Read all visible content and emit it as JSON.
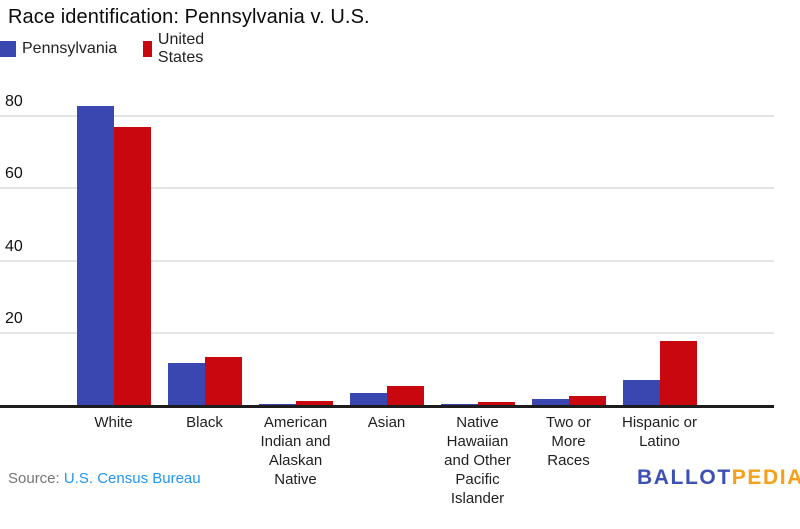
{
  "title": "Race identification: Pennsylvania v. U.S.",
  "legend": {
    "pennsylvania": "Pennsylvania",
    "united_states": "United States"
  },
  "source": {
    "prefix": "Source:",
    "link_text": "U.S. Census Bureau"
  },
  "branding": {
    "part1": "BALLOT",
    "part2": "PEDIA",
    "part1_color": "#3d50b4",
    "part2_color": "#f5a01b"
  },
  "colors": {
    "pennsylvania_blue": "#3a47b0",
    "united_states_red": "#c9070f",
    "gridline": "#e4e4e4",
    "axis": "#1d1d1d",
    "source_link_blue": "#2196f3"
  },
  "chart_data": {
    "type": "bar",
    "title": "Race identification: Pennsylvania v. U.S.",
    "xlabel": "",
    "ylabel": "",
    "categories": [
      "White",
      "Black",
      "American Indian and Alaskan Native",
      "Asian",
      "Native Hawaiian and Other Pacific Islander",
      "Two or More Races",
      "Hispanic or Latino"
    ],
    "category_display": [
      "White",
      "Black",
      "American\nIndian and\nAlaskan\nNative",
      "Asian",
      "Native\nHawaiian\nand Other\nPacific\nIslander",
      "Two or\nMore\nRaces",
      "Hispanic or\nLatino"
    ],
    "series": [
      {
        "name": "Pennsylvania",
        "color": "#3a47b0",
        "values": [
          82.8,
          11.6,
          0.4,
          3.2,
          0.1,
          1.7,
          6.9
        ]
      },
      {
        "name": "United States",
        "color": "#c9070f",
        "values": [
          77.1,
          13.4,
          1.2,
          5.4,
          0.7,
          2.5,
          17.7
        ]
      }
    ],
    "yticks": [
      20,
      40,
      60,
      80
    ],
    "ylim": [
      0,
      88.6
    ],
    "grid": true,
    "legend_position": "top-left",
    "units": "percent"
  }
}
